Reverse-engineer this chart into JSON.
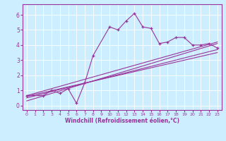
{
  "xlabel": "Windchill (Refroidissement éolien,°C)",
  "bg_color": "#cceeff",
  "line_color": "#993399",
  "xlim": [
    -0.5,
    23.5
  ],
  "ylim": [
    -0.3,
    6.7
  ],
  "xticks": [
    0,
    1,
    2,
    3,
    4,
    5,
    6,
    7,
    8,
    9,
    10,
    11,
    12,
    13,
    14,
    15,
    16,
    17,
    18,
    19,
    20,
    21,
    22,
    23
  ],
  "yticks": [
    0,
    1,
    2,
    3,
    4,
    5,
    6
  ],
  "series1_x": [
    0,
    2,
    3,
    4,
    5,
    6,
    7,
    8,
    10,
    11,
    12,
    13,
    14,
    15,
    16,
    17,
    18,
    19,
    20,
    21,
    22,
    23
  ],
  "series1_y": [
    0.65,
    0.65,
    1.0,
    0.8,
    1.1,
    0.15,
    1.5,
    3.3,
    5.2,
    5.0,
    5.6,
    6.1,
    5.2,
    5.1,
    4.1,
    4.2,
    4.5,
    4.5,
    4.0,
    4.0,
    4.1,
    3.8
  ],
  "line1_x": [
    0,
    23
  ],
  "line1_y": [
    0.5,
    3.7
  ],
  "line2_x": [
    0,
    23
  ],
  "line2_y": [
    0.3,
    4.1
  ],
  "line3_x": [
    0,
    23
  ],
  "line3_y": [
    0.6,
    3.5
  ],
  "line4_x": [
    0,
    23
  ],
  "line4_y": [
    0.65,
    4.2
  ]
}
